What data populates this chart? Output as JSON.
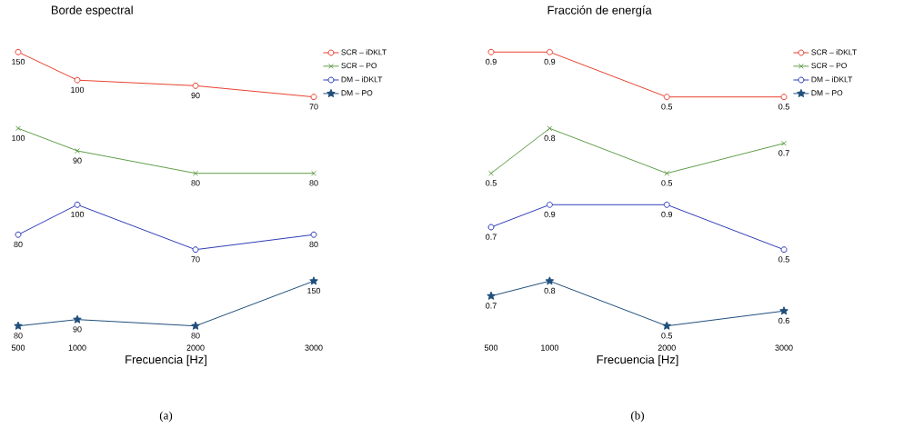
{
  "chart_data": [
    {
      "type": "line",
      "title": "Borde espectral",
      "x": [
        500,
        1000,
        2000,
        3000
      ],
      "xlim": [
        500,
        3000
      ],
      "xticks": [
        500,
        1000,
        2000,
        3000
      ],
      "tick_labels": false,
      "data_labels": true,
      "legend": "top right",
      "marker": "circle",
      "line_style": "solid",
      "series": [
        {
          "name": "SCR – iDKLT",
          "color": "#e8412f",
          "values": [
            150,
            100,
            90,
            70
          ]
        }
      ]
    },
    {
      "type": "line",
      "x": [
        500,
        1000,
        2000,
        3000
      ],
      "xlim": [
        500,
        3000
      ],
      "xticks": [
        500,
        1000,
        2000,
        3000
      ],
      "tick_labels": false,
      "data_labels": true,
      "legend": "top right",
      "marker": "cross",
      "line_style": "solid",
      "series": [
        {
          "name": "SCR – PO",
          "color": "#5f9e4a",
          "values": [
            100,
            90,
            80,
            80
          ]
        }
      ]
    },
    {
      "type": "line",
      "x": [
        500,
        1000,
        2000,
        3000
      ],
      "xlim": [
        500,
        3000
      ],
      "xticks": [
        500,
        1000,
        2000,
        3000
      ],
      "tick_labels": false,
      "data_labels": true,
      "legend": "top right",
      "marker": "circle",
      "line_style": "solid",
      "series": [
        {
          "name": "DM – iDKLT",
          "color": "#2f3cb8",
          "values": [
            80,
            100,
            70,
            80
          ]
        }
      ]
    },
    {
      "type": "line",
      "xlabel": "Frecuencia [Hz]",
      "annotations": [
        "(a)"
      ],
      "x": [
        500,
        1000,
        2000,
        3000
      ],
      "xlim": [
        500,
        3000
      ],
      "xticks": [
        500,
        1000,
        2000,
        3000
      ],
      "tick_labels": "x",
      "data_labels": true,
      "legend": "top right",
      "marker": "star",
      "line_style": "solid",
      "series": [
        {
          "name": "DM – PO",
          "color": "#1f4e7a",
          "values": [
            80,
            90,
            80,
            150
          ]
        }
      ]
    },
    {
      "type": "line",
      "title": "Fracción de energía",
      "x": [
        500,
        1000,
        2000,
        3000
      ],
      "xlim": [
        500,
        3000
      ],
      "xticks": [
        500,
        1000,
        2000,
        3000
      ],
      "tick_labels": false,
      "data_labels": true,
      "legend": "top right",
      "marker": "circle",
      "line_style": "solid",
      "series": [
        {
          "name": "SCR – iDKLT",
          "color": "#e8412f",
          "values": [
            0.9,
            0.9,
            0.5,
            0.5
          ]
        }
      ]
    },
    {
      "type": "line",
      "x": [
        500,
        1000,
        2000,
        3000
      ],
      "xlim": [
        500,
        3000
      ],
      "xticks": [
        500,
        1000,
        2000,
        3000
      ],
      "tick_labels": false,
      "data_labels": true,
      "legend": "top right",
      "marker": "cross",
      "line_style": "solid",
      "series": [
        {
          "name": "SCR – PO",
          "color": "#5f9e4a",
          "values": [
            0.5,
            0.8,
            0.5,
            0.7
          ]
        }
      ]
    },
    {
      "type": "line",
      "x": [
        500,
        1000,
        2000,
        3000
      ],
      "xlim": [
        500,
        3000
      ],
      "xticks": [
        500,
        1000,
        2000,
        3000
      ],
      "tick_labels": false,
      "data_labels": true,
      "legend": "top right",
      "marker": "circle",
      "line_style": "solid",
      "series": [
        {
          "name": "DM – iDKLT",
          "color": "#2f3cb8",
          "values": [
            0.7,
            0.9,
            0.9,
            0.5
          ]
        }
      ]
    },
    {
      "type": "line",
      "xlabel": "Frecuencia [Hz]",
      "annotations": [
        "(b)"
      ],
      "x": [
        500,
        1000,
        2000,
        3000
      ],
      "xlim": [
        500,
        3000
      ],
      "xticks": [
        500,
        1000,
        2000,
        3000
      ],
      "tick_labels": "x",
      "data_labels": true,
      "legend": "top right",
      "marker": "star",
      "line_style": "solid",
      "series": [
        {
          "name": "DM – PO",
          "color": "#1f4e7a",
          "values": [
            0.7,
            0.8,
            0.5,
            0.6
          ]
        }
      ]
    }
  ]
}
